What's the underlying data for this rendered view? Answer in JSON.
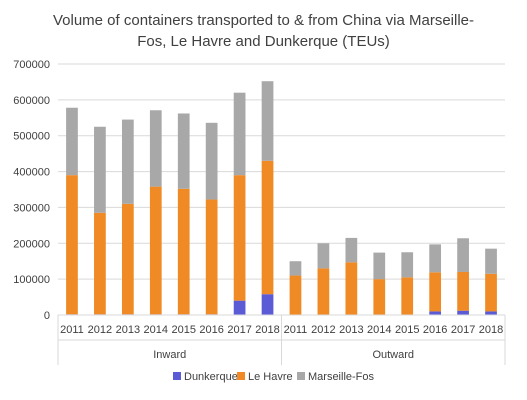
{
  "chart_data": {
    "type": "bar",
    "stacked": true,
    "title_line1": "Volume of containers transported to & from China via Marseille-",
    "title_line2": "Fos, Le Havre and Dunkerque (TEUs)",
    "xlabel": "",
    "ylabel": "",
    "ylim": [
      0,
      700000
    ],
    "yticks": [
      "0",
      "100000",
      "200000",
      "300000",
      "400000",
      "500000",
      "600000",
      "700000"
    ],
    "grid": true,
    "legend_position": "bottom",
    "groups": [
      {
        "label": "Inward",
        "categories": [
          "2011",
          "2012",
          "2013",
          "2014",
          "2015",
          "2016",
          "2017",
          "2018"
        ]
      },
      {
        "label": "Outward",
        "categories": [
          "2011",
          "2012",
          "2013",
          "2014",
          "2015",
          "2016",
          "2017",
          "2018"
        ]
      }
    ],
    "series": [
      {
        "name": "Dunkerque",
        "color": "#5b5bd6",
        "values": [
          2000,
          2000,
          2000,
          2000,
          2000,
          2000,
          40000,
          58000,
          1000,
          1000,
          1000,
          1000,
          1000,
          10000,
          12000,
          10000
        ]
      },
      {
        "name": "Le Havre",
        "color": "#f08a24",
        "values": [
          388000,
          283000,
          308000,
          356000,
          350000,
          320000,
          350000,
          372000,
          109000,
          129000,
          146000,
          99000,
          104000,
          109000,
          108000,
          105000
        ]
      },
      {
        "name": "Marseille-Fos",
        "color": "#a8a8a8",
        "values": [
          188000,
          240000,
          235000,
          213000,
          210000,
          214000,
          230000,
          222000,
          40000,
          70000,
          68000,
          74000,
          70000,
          78000,
          94000,
          70000
        ]
      }
    ]
  }
}
